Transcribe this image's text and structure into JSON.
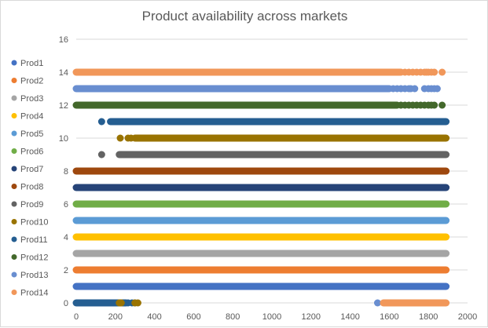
{
  "chart_data": {
    "type": "scatter",
    "title": "Product availability across markets",
    "xlabel": "",
    "ylabel": "",
    "xlim": [
      0,
      2000
    ],
    "ylim": [
      0,
      16
    ],
    "x_ticks": [
      0,
      200,
      400,
      600,
      800,
      1000,
      1200,
      1400,
      1600,
      1800,
      2000
    ],
    "y_ticks": [
      0,
      2,
      4,
      6,
      8,
      10,
      12,
      14,
      16
    ],
    "gridlines": "horizontal",
    "legend_position": "left",
    "series": [
      {
        "name": "Prod1",
        "color": "#4472C4",
        "y": 1,
        "ranges": [
          [
            0,
            1890
          ]
        ],
        "points": []
      },
      {
        "name": "Prod2",
        "color": "#ED7D31",
        "y": 2,
        "ranges": [
          [
            0,
            1890
          ]
        ],
        "points": []
      },
      {
        "name": "Prod3",
        "color": "#A5A5A5",
        "y": 3,
        "ranges": [
          [
            0,
            1890
          ]
        ],
        "points": []
      },
      {
        "name": "Prod4",
        "color": "#FFC000",
        "y": 4,
        "ranges": [
          [
            0,
            1890
          ]
        ],
        "points": []
      },
      {
        "name": "Prod5",
        "color": "#5B9BD5",
        "y": 5,
        "ranges": [
          [
            0,
            1890
          ]
        ],
        "points": []
      },
      {
        "name": "Prod6",
        "color": "#70AD47",
        "y": 6,
        "ranges": [
          [
            0,
            1890
          ]
        ],
        "points": []
      },
      {
        "name": "Prod7",
        "color": "#264478",
        "y": 7,
        "ranges": [
          [
            0,
            1890
          ]
        ],
        "points": []
      },
      {
        "name": "Prod8",
        "color": "#9E480E",
        "y": 8,
        "ranges": [
          [
            0,
            1890
          ]
        ],
        "points": []
      },
      {
        "name": "Prod9",
        "color": "#636363",
        "y": 9,
        "ranges": [
          [
            220,
            1890
          ]
        ],
        "points": [
          130,
          225,
          240
        ]
      },
      {
        "name": "Prod10",
        "color": "#997300",
        "y": 10,
        "ranges": [
          [
            300,
            1890
          ]
        ],
        "points": [
          225,
          265,
          280
        ]
      },
      {
        "name": "Prod11",
        "color": "#255E91",
        "y": 11,
        "ranges": [
          [
            175,
            1890
          ]
        ],
        "points": [
          130
        ]
      },
      {
        "name": "Prod12",
        "color": "#43682B",
        "y": 12,
        "ranges": [
          [
            0,
            1640
          ]
        ],
        "points": [
          1660,
          1680,
          1700,
          1720,
          1740,
          1760,
          1780,
          1800,
          1815,
          1830,
          1870
        ]
      },
      {
        "name": "Prod13",
        "color": "#698ED0",
        "y": 13,
        "ranges": [
          [
            0,
            1600
          ]
        ],
        "points": [
          1620,
          1640,
          1660,
          1680,
          1700,
          1710,
          1730,
          1780,
          1800,
          1815,
          1830,
          1845
        ]
      },
      {
        "name": "Prod14",
        "color": "#F1975A",
        "y": 14,
        "ranges": [
          [
            0,
            1660
          ]
        ],
        "points": [
          1680,
          1700,
          1720,
          1740,
          1760,
          1780,
          1790,
          1800,
          1815,
          1830,
          1870
        ]
      },
      {
        "name": "Prod11",
        "color": "#255E91",
        "y": 0,
        "ranges": [
          [
            0,
            215
          ],
          [
            235,
            255
          ]
        ],
        "points": [
          265,
          285,
          300
        ],
        "show_in_legend": false
      },
      {
        "name": "Prod10",
        "color": "#997300",
        "y": 0,
        "ranges": [
          [
            220,
            230
          ]
        ],
        "points": [
          300,
          315
        ],
        "show_in_legend": false
      },
      {
        "name": "Prod13",
        "color": "#698ED0",
        "y": 0,
        "ranges": [],
        "points": [
          1540,
          1580
        ],
        "show_in_legend": false
      },
      {
        "name": "Prod14",
        "color": "#F1975A",
        "y": 0,
        "ranges": [
          [
            1570,
            1890
          ]
        ],
        "points": [],
        "show_in_legend": false
      }
    ]
  }
}
